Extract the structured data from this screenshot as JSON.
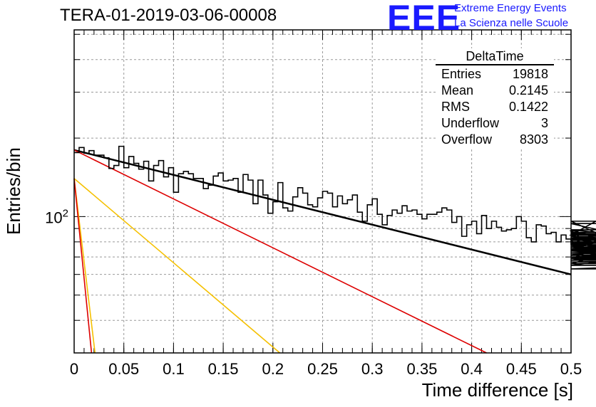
{
  "title": "TERA-01-2019-03-06-00008",
  "logo": {
    "letters": "EEE",
    "line1": "Extreme Energy Events",
    "line2": "La Scienza nelle Scuole"
  },
  "stats": {
    "name": "DeltaTime",
    "rows": [
      {
        "label": "Entries",
        "value": "19818"
      },
      {
        "label": "Mean",
        "value": "0.2145"
      },
      {
        "label": "RMS",
        "value": "0.1422"
      },
      {
        "label": "Underflow",
        "value": "3"
      },
      {
        "label": "Overflow",
        "value": "8303"
      }
    ]
  },
  "chart_data": {
    "type": "histogram",
    "title": "TERA-01-2019-03-06-00008",
    "xlabel": "Time difference [s]",
    "ylabel": "Entries/bin",
    "xlim": [
      0,
      0.5
    ],
    "ylim": [
      30,
      520
    ],
    "ylog": true,
    "grid": true,
    "x_tick_labels": [
      "0",
      "0.05",
      "0.1",
      "0.15",
      "0.2",
      "0.25",
      "0.3",
      "0.35",
      "0.4",
      "0.45",
      "0.5"
    ],
    "y_tick_labels": [
      {
        "value": 100,
        "label": "10^2"
      }
    ],
    "bin_width": 0.005,
    "histogram_values": [
      176,
      184,
      175,
      179,
      172,
      172,
      168,
      153,
      157,
      186,
      154,
      170,
      160,
      152,
      163,
      137,
      157,
      164,
      142,
      154,
      124,
      146,
      149,
      146,
      140,
      140,
      128,
      132,
      143,
      147,
      137,
      138,
      140,
      124,
      145,
      138,
      112,
      138,
      121,
      103,
      114,
      135,
      108,
      105,
      119,
      129,
      123,
      111,
      109,
      118,
      125,
      123,
      109,
      120,
      112,
      116,
      121,
      104,
      96,
      111,
      117,
      102,
      93,
      101,
      106,
      103,
      110,
      105,
      106,
      102,
      98,
      102,
      102,
      104,
      108,
      106,
      95,
      100,
      84,
      93,
      96,
      86,
      101,
      90,
      96,
      91,
      88,
      89,
      90,
      100,
      96,
      83,
      80,
      93,
      92,
      86,
      87,
      80,
      85,
      82,
      78,
      88,
      83,
      78,
      85,
      96,
      85,
      79,
      69,
      80,
      66,
      75,
      78,
      74,
      94,
      81,
      83,
      77,
      85,
      87,
      76,
      77,
      69,
      83,
      82,
      71,
      89,
      79,
      81,
      87,
      74,
      84,
      78,
      68,
      79,
      87,
      76,
      71,
      86,
      75,
      72,
      79,
      66,
      68,
      70,
      75,
      65,
      84,
      69,
      69,
      63,
      69,
      74,
      66,
      70,
      67,
      70,
      71,
      73,
      73
    ],
    "fit_lines": [
      {
        "name": "total",
        "color": "#000000",
        "points": [
          [
            0,
            180
          ],
          [
            0.5,
            60
          ]
        ]
      },
      {
        "name": "slow",
        "color": "#dd0000",
        "points": [
          [
            0,
            180
          ],
          [
            0.415,
            30
          ]
        ]
      },
      {
        "name": "mid",
        "color": "#f5c000",
        "points": [
          [
            0,
            140
          ],
          [
            0.207,
            30
          ]
        ]
      },
      {
        "name": "fast",
        "color": "#f5c000",
        "points": [
          [
            0,
            140
          ],
          [
            0.021,
            30
          ]
        ]
      },
      {
        "name": "fastest",
        "color": "#dd0000",
        "points": [
          [
            0,
            140
          ],
          [
            0.0175,
            30
          ]
        ]
      }
    ]
  }
}
